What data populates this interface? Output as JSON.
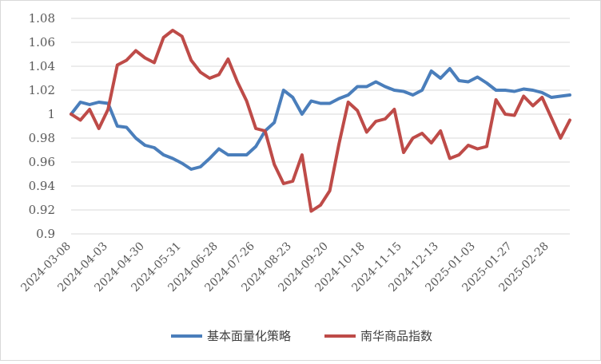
{
  "chart_data": {
    "type": "line",
    "title": "",
    "xlabel": "",
    "ylabel": "",
    "ylim": [
      0.9,
      1.08
    ],
    "y_ticks": [
      "0.9",
      "0.92",
      "0.94",
      "0.96",
      "0.98",
      "1",
      "1.02",
      "1.04",
      "1.06",
      "1.08"
    ],
    "x_tick_labels": [
      "2024-03-08",
      "2024-04-03",
      "2024-04-30",
      "2024-05-31",
      "2024-06-28",
      "2024-07-26",
      "2024-08-23",
      "2024-09-20",
      "2024-10-18",
      "2024-11-15",
      "2024-12-13",
      "2025-01-03",
      "2025-01-27",
      "2025-02-28"
    ],
    "grid": true,
    "legend_position": "bottom",
    "series": [
      {
        "name": "基本面量化策略",
        "color": "#4a7ebb",
        "values": [
          1.0,
          1.01,
          1.008,
          1.01,
          1.009,
          0.99,
          0.989,
          0.98,
          0.974,
          0.972,
          0.966,
          0.963,
          0.959,
          0.954,
          0.956,
          0.963,
          0.971,
          0.966,
          0.966,
          0.966,
          0.973,
          0.986,
          0.993,
          1.02,
          1.014,
          1.0,
          1.011,
          1.009,
          1.009,
          1.013,
          1.016,
          1.023,
          1.023,
          1.027,
          1.023,
          1.02,
          1.019,
          1.016,
          1.02,
          1.036,
          1.03,
          1.038,
          1.028,
          1.027,
          1.031,
          1.026,
          1.02,
          1.02,
          1.019,
          1.021,
          1.02,
          1.018,
          1.014,
          1.015,
          1.016
        ]
      },
      {
        "name": "南华商品指数",
        "color": "#be4b48",
        "values": [
          1.0,
          0.995,
          1.004,
          0.988,
          1.004,
          1.041,
          1.045,
          1.053,
          1.047,
          1.043,
          1.064,
          1.07,
          1.065,
          1.045,
          1.035,
          1.03,
          1.033,
          1.046,
          1.027,
          1.011,
          0.988,
          0.986,
          0.958,
          0.942,
          0.944,
          0.966,
          0.919,
          0.924,
          0.936,
          0.975,
          1.01,
          1.003,
          0.985,
          0.994,
          0.996,
          1.004,
          0.968,
          0.98,
          0.984,
          0.976,
          0.986,
          0.963,
          0.966,
          0.974,
          0.971,
          0.973,
          1.012,
          1.0,
          0.999,
          1.015,
          1.007,
          1.014,
          0.997,
          0.98,
          0.995
        ]
      }
    ]
  }
}
